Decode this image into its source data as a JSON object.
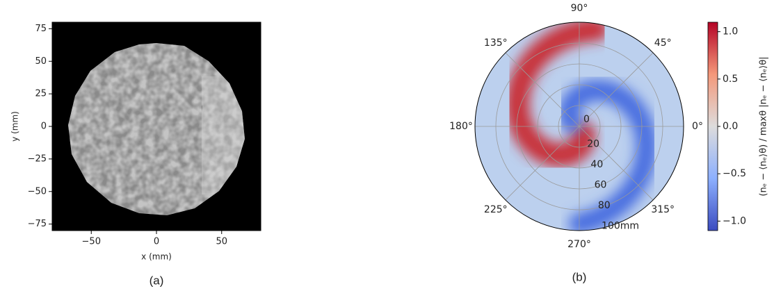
{
  "panel_a": {
    "xlabel": "x (mm)",
    "ylabel": "y (mm)",
    "xlim": [
      -80,
      80
    ],
    "ylim": [
      -80,
      80
    ],
    "xticks": [
      {
        "value": -50,
        "label": "−50"
      },
      0,
      50
    ],
    "yticks": [
      {
        "value": -75,
        "label": "−75"
      },
      {
        "value": -50,
        "label": "−50"
      },
      {
        "value": -25,
        "label": "−25"
      },
      0,
      25,
      50,
      75
    ],
    "caption": "(a)"
  },
  "panel_b": {
    "rlim": [
      0,
      100
    ],
    "angle_ticks": [
      {
        "value": 0,
        "label": "0°"
      },
      {
        "value": 45,
        "label": "45°"
      },
      {
        "value": 90,
        "label": "90°"
      },
      {
        "value": 135,
        "label": "135°"
      },
      {
        "value": 180,
        "label": "180°"
      },
      {
        "value": 225,
        "label": "225°"
      },
      {
        "value": 270,
        "label": "270°"
      },
      {
        "value": 315,
        "label": "315°"
      }
    ],
    "rticks": [
      0,
      20,
      40,
      60,
      80,
      {
        "value": 100,
        "label": "100mm"
      }
    ],
    "colorbar_label": "(nₑ − ⟨nₑ⟩θ) / maxθ |nₑ − ⟨nₑ⟩θ|",
    "clim": [
      -1.1,
      1.1
    ],
    "cticks": [
      {
        "value": -1,
        "label": "−1.0"
      },
      {
        "value": -0.5,
        "label": "−0.5"
      },
      {
        "value": 0,
        "label": "0.0"
      },
      0.5,
      {
        "value": 1,
        "label": "1.0"
      }
    ],
    "caption": "(b)"
  }
}
